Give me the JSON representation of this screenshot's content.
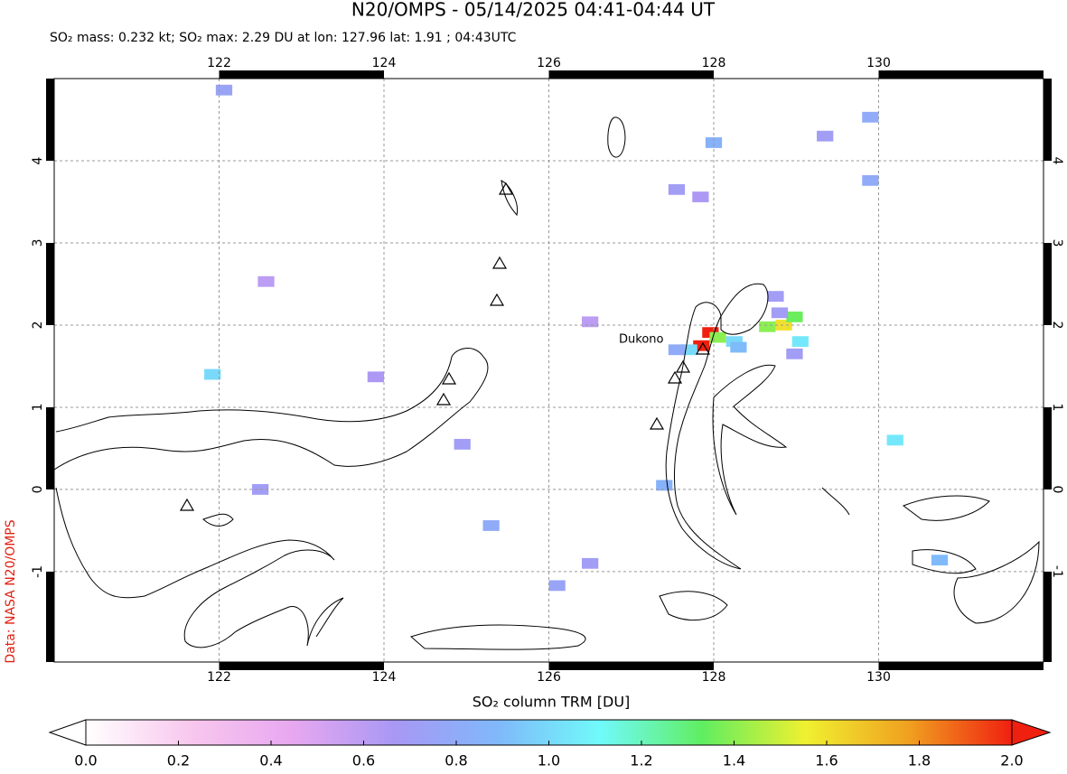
{
  "map": {
    "title": "N20/OMPS - 05/14/2025 04:41-04:44 UT",
    "subtitle": "SO₂ mass: 0.232 kt; SO₂ max: 2.29 DU at lon: 127.96 lat: 1.91 ; 04:43UTC",
    "credit": "Data: NASA N20/OMPS",
    "volcano_label": "Dukono",
    "xlim": [
      120,
      132
    ],
    "ylim": [
      -2.1,
      5
    ],
    "xticks": [
      122,
      124,
      126,
      128,
      130
    ],
    "yticks": [
      -1,
      0,
      1,
      2,
      3,
      4
    ],
    "grid": true,
    "pixels": [
      {
        "lon": 127.96,
        "lat": 1.91,
        "value": 2.29
      },
      {
        "lon": 127.85,
        "lat": 1.75,
        "value": 2.0
      },
      {
        "lon": 128.05,
        "lat": 1.85,
        "value": 1.4
      },
      {
        "lon": 128.65,
        "lat": 1.98,
        "value": 1.4
      },
      {
        "lon": 128.85,
        "lat": 2.0,
        "value": 1.6
      },
      {
        "lon": 128.98,
        "lat": 2.1,
        "value": 1.35
      },
      {
        "lon": 128.8,
        "lat": 2.15,
        "value": 0.7
      },
      {
        "lon": 128.75,
        "lat": 2.35,
        "value": 0.7
      },
      {
        "lon": 128.98,
        "lat": 1.65,
        "value": 0.7
      },
      {
        "lon": 129.05,
        "lat": 1.8,
        "value": 1.05
      },
      {
        "lon": 127.7,
        "lat": 1.7,
        "value": 1.0
      },
      {
        "lon": 127.55,
        "lat": 1.7,
        "value": 0.8
      },
      {
        "lon": 128.25,
        "lat": 1.8,
        "value": 1.0
      },
      {
        "lon": 122.06,
        "lat": 4.86,
        "value": 0.75
      },
      {
        "lon": 121.92,
        "lat": 1.4,
        "value": 1.0
      },
      {
        "lon": 122.5,
        "lat": 0.0,
        "value": 0.7
      },
      {
        "lon": 124.95,
        "lat": 0.55,
        "value": 0.7
      },
      {
        "lon": 125.3,
        "lat": -0.44,
        "value": 0.8
      },
      {
        "lon": 126.1,
        "lat": -1.17,
        "value": 0.75
      },
      {
        "lon": 126.5,
        "lat": -0.9,
        "value": 0.7
      },
      {
        "lon": 129.9,
        "lat": 4.53,
        "value": 0.8
      },
      {
        "lon": 129.9,
        "lat": 3.76,
        "value": 0.8
      },
      {
        "lon": 130.2,
        "lat": 0.6,
        "value": 1.05
      },
      {
        "lon": 128.0,
        "lat": 4.22,
        "value": 0.85
      },
      {
        "lon": 127.55,
        "lat": 3.65,
        "value": 0.7
      },
      {
        "lon": 127.84,
        "lat": 3.56,
        "value": 0.65
      },
      {
        "lon": 129.35,
        "lat": 4.3,
        "value": 0.7
      },
      {
        "lon": 130.74,
        "lat": -0.86,
        "value": 0.9
      },
      {
        "lon": 123.9,
        "lat": 1.37,
        "value": 0.65
      },
      {
        "lon": 122.57,
        "lat": 2.53,
        "value": 0.6
      },
      {
        "lon": 126.5,
        "lat": 2.04,
        "value": 0.6
      },
      {
        "lon": 127.4,
        "lat": 0.05,
        "value": 0.85
      },
      {
        "lon": 128.3,
        "lat": 1.73,
        "value": 0.9
      }
    ],
    "colorbar": {
      "label": "SO₂ column TRM [DU]",
      "lim": [
        0,
        2
      ],
      "colors": [
        "#ffffff",
        "#f8c8ee",
        "#e8a8f0",
        "#a898f4",
        "#80b8fa",
        "#70fafa",
        "#60ee60",
        "#f0f030",
        "#f0a020",
        "#f02010"
      ],
      "ticks": [
        {
          "value": 0,
          "label": "0.0"
        },
        {
          "value": 0.2,
          "label": "0.2"
        },
        {
          "value": 0.4,
          "label": "0.4"
        },
        {
          "value": 0.6,
          "label": "0.6"
        },
        {
          "value": 0.8,
          "label": "0.8"
        },
        {
          "value": 1,
          "label": "1.0"
        },
        {
          "value": 1.2,
          "label": "1.2"
        },
        {
          "value": 1.4,
          "label": "1.4"
        },
        {
          "value": 1.6,
          "label": "1.6"
        },
        {
          "value": 1.8,
          "label": "1.8"
        },
        {
          "value": 2,
          "label": "2.0"
        }
      ]
    }
  }
}
